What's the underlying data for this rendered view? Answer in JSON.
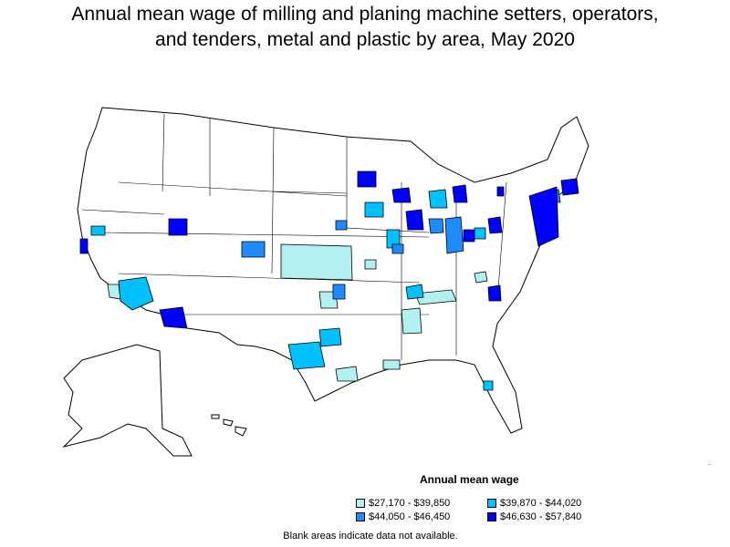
{
  "title": {
    "line1": "Annual mean wage of milling and planing machine setters, operators,",
    "line2": "and tenders, metal and plastic by area, May 2020"
  },
  "legend": {
    "title": "Annual mean wage",
    "items": [
      {
        "label": "$27,170 - $39,850",
        "color": "#b3f0f0"
      },
      {
        "label": "$39,870 - $44,020",
        "color": "#00c0ff"
      },
      {
        "label": "$44,050 - $46,450",
        "color": "#1e8cff"
      },
      {
        "label": "$46,630 - $57,840",
        "color": "#0000ff"
      }
    ]
  },
  "footnote": "Blank areas indicate data not available.",
  "colors": {
    "border": "#000000",
    "background": "#ffffff"
  }
}
